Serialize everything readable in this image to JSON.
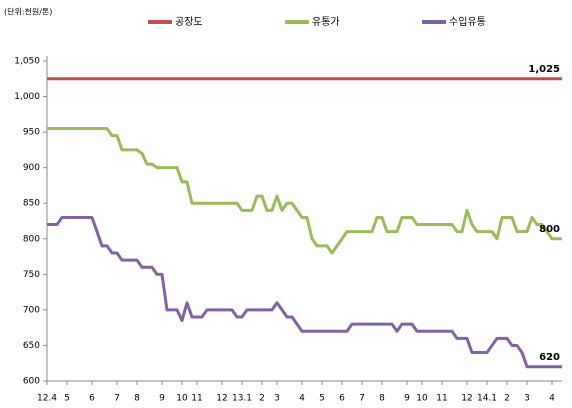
{
  "chart_data": {
    "type": "line",
    "unit_label": "(단위:천원/톤)",
    "categories": [
      "12.4",
      null,
      null,
      null,
      "5",
      null,
      null,
      null,
      null,
      "6",
      null,
      null,
      null,
      null,
      "7",
      null,
      null,
      null,
      "8",
      null,
      null,
      null,
      null,
      "9",
      null,
      null,
      null,
      "10",
      null,
      null,
      "11",
      null,
      null,
      null,
      null,
      "12",
      null,
      null,
      null,
      "13.1",
      null,
      null,
      null,
      "2",
      null,
      null,
      "3",
      null,
      null,
      null,
      null,
      "4",
      null,
      null,
      null,
      "5",
      null,
      null,
      null,
      "6",
      null,
      null,
      null,
      "7",
      null,
      null,
      null,
      "8",
      null,
      null,
      null,
      null,
      "9",
      null,
      null,
      "10",
      null,
      null,
      null,
      "11",
      null,
      null,
      null,
      null,
      "12",
      null,
      null,
      null,
      "14.1",
      null,
      null,
      null,
      "2",
      null,
      null,
      null,
      "3",
      null,
      null,
      null,
      null,
      "4",
      null,
      null
    ],
    "series": [
      {
        "name": "공장도",
        "color": "#c0504d",
        "values": [
          1025,
          1025,
          1025,
          1025,
          1025,
          1025,
          1025,
          1025,
          1025,
          1025,
          1025,
          1025,
          1025,
          1025,
          1025,
          1025,
          1025,
          1025,
          1025,
          1025,
          1025,
          1025,
          1025,
          1025,
          1025,
          1025,
          1025,
          1025,
          1025,
          1025,
          1025,
          1025,
          1025,
          1025,
          1025,
          1025,
          1025,
          1025,
          1025,
          1025,
          1025,
          1025,
          1025,
          1025,
          1025,
          1025,
          1025,
          1025,
          1025,
          1025,
          1025,
          1025,
          1025,
          1025,
          1025,
          1025,
          1025,
          1025,
          1025,
          1025,
          1025,
          1025,
          1025,
          1025,
          1025,
          1025,
          1025,
          1025,
          1025,
          1025,
          1025,
          1025,
          1025,
          1025,
          1025,
          1025,
          1025,
          1025,
          1025,
          1025,
          1025,
          1025,
          1025,
          1025,
          1025,
          1025,
          1025,
          1025,
          1025,
          1025,
          1025,
          1025,
          1025,
          1025,
          1025,
          1025,
          1025,
          1025,
          1025,
          1025,
          1025,
          1025,
          1025,
          1025
        ],
        "value_labels": [
          null,
          null,
          null,
          null,
          null,
          null,
          null,
          null,
          null,
          null,
          null,
          null,
          null,
          null,
          null,
          null,
          null,
          null,
          null,
          null,
          null,
          null,
          null,
          null,
          null,
          null,
          null,
          null,
          null,
          null,
          null,
          null,
          null,
          null,
          null,
          null,
          null,
          null,
          null,
          null,
          null,
          null,
          null,
          null,
          null,
          null,
          null,
          null,
          null,
          null,
          null,
          null,
          null,
          null,
          null,
          null,
          null,
          null,
          null,
          null,
          null,
          null,
          null,
          null,
          null,
          null,
          null,
          null,
          null,
          null,
          null,
          null,
          null,
          null,
          null,
          null,
          null,
          null,
          null,
          null,
          null,
          null,
          null,
          null,
          null,
          null,
          null,
          null,
          null,
          null,
          null,
          null,
          null,
          null,
          null,
          null,
          null,
          null,
          null,
          null,
          null,
          null,
          null,
          "1,025"
        ]
      },
      {
        "name": "유통가",
        "color": "#9bbb59",
        "values": [
          955,
          955,
          955,
          955,
          955,
          955,
          955,
          955,
          955,
          955,
          955,
          955,
          955,
          945,
          945,
          925,
          925,
          925,
          925,
          920,
          905,
          905,
          900,
          900,
          900,
          900,
          900,
          880,
          880,
          850,
          850,
          850,
          850,
          850,
          850,
          850,
          850,
          850,
          850,
          840,
          840,
          840,
          860,
          860,
          840,
          840,
          860,
          840,
          850,
          850,
          840,
          830,
          830,
          800,
          790,
          790,
          790,
          780,
          790,
          800,
          810,
          810,
          810,
          810,
          810,
          810,
          830,
          830,
          810,
          810,
          810,
          830,
          830,
          830,
          820,
          820,
          820,
          820,
          820,
          820,
          820,
          820,
          810,
          810,
          840,
          820,
          810,
          810,
          810,
          810,
          800,
          830,
          830,
          830,
          810,
          810,
          810,
          830,
          820,
          820,
          810,
          800,
          800,
          800
        ],
        "value_labels": [
          null,
          null,
          null,
          null,
          null,
          null,
          null,
          null,
          null,
          null,
          null,
          null,
          null,
          null,
          null,
          null,
          null,
          null,
          null,
          null,
          null,
          null,
          null,
          null,
          null,
          null,
          null,
          null,
          null,
          null,
          null,
          null,
          null,
          null,
          null,
          null,
          null,
          null,
          null,
          null,
          null,
          null,
          null,
          null,
          null,
          null,
          null,
          null,
          null,
          null,
          null,
          null,
          null,
          null,
          null,
          null,
          null,
          null,
          null,
          null,
          null,
          null,
          null,
          null,
          null,
          null,
          null,
          null,
          null,
          null,
          null,
          null,
          null,
          null,
          null,
          null,
          null,
          null,
          null,
          null,
          null,
          null,
          null,
          null,
          null,
          null,
          null,
          null,
          null,
          null,
          null,
          null,
          null,
          null,
          null,
          null,
          null,
          null,
          null,
          null,
          null,
          null,
          null,
          "800"
        ]
      },
      {
        "name": "수입유통",
        "color": "#8064a2",
        "values": [
          820,
          820,
          820,
          830,
          830,
          830,
          830,
          830,
          830,
          830,
          810,
          790,
          790,
          780,
          780,
          770,
          770,
          770,
          770,
          760,
          760,
          760,
          750,
          750,
          700,
          700,
          700,
          685,
          710,
          690,
          690,
          690,
          700,
          700,
          700,
          700,
          700,
          700,
          690,
          690,
          700,
          700,
          700,
          700,
          700,
          700,
          710,
          700,
          690,
          690,
          680,
          670,
          670,
          670,
          670,
          670,
          670,
          670,
          670,
          670,
          670,
          680,
          680,
          680,
          680,
          680,
          680,
          680,
          680,
          680,
          670,
          680,
          680,
          680,
          670,
          670,
          670,
          670,
          670,
          670,
          670,
          670,
          660,
          660,
          660,
          640,
          640,
          640,
          640,
          650,
          660,
          660,
          660,
          650,
          650,
          640,
          620,
          620,
          620,
          620,
          620,
          620,
          620,
          620
        ],
        "value_labels": [
          null,
          null,
          null,
          null,
          null,
          null,
          null,
          null,
          null,
          null,
          null,
          null,
          null,
          null,
          null,
          null,
          null,
          null,
          null,
          null,
          null,
          null,
          null,
          null,
          null,
          null,
          null,
          null,
          null,
          null,
          null,
          null,
          null,
          null,
          null,
          null,
          null,
          null,
          null,
          null,
          null,
          null,
          null,
          null,
          null,
          null,
          null,
          null,
          null,
          null,
          null,
          null,
          null,
          null,
          null,
          null,
          null,
          null,
          null,
          null,
          null,
          null,
          null,
          null,
          null,
          null,
          null,
          null,
          null,
          null,
          null,
          null,
          null,
          null,
          null,
          null,
          null,
          null,
          null,
          null,
          null,
          null,
          null,
          null,
          null,
          null,
          null,
          null,
          null,
          null,
          null,
          null,
          null,
          null,
          null,
          null,
          null,
          null,
          null,
          null,
          null,
          null,
          null,
          "620"
        ]
      }
    ],
    "ylim": [
      600,
      1050
    ],
    "yticks": [
      600,
      650,
      700,
      750,
      800,
      850,
      900,
      950,
      {
        "value": 1000,
        "label": "1,000"
      },
      {
        "value": 1050,
        "label": "1,050"
      }
    ],
    "grid": false
  }
}
